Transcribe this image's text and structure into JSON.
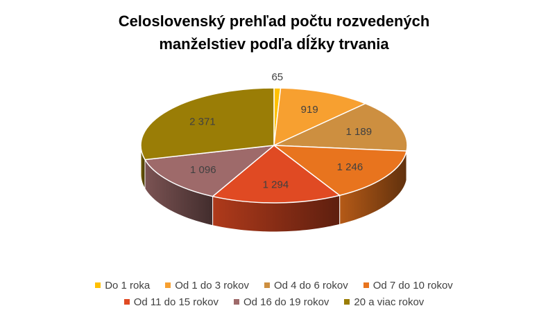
{
  "chart_data": {
    "type": "pie",
    "title_line1": "Celoslovenský prehľad počtu rozvedených",
    "title_line2": "manželstiev podľa dĺžky trvania",
    "slices": [
      {
        "name": "Do 1 roka",
        "value": 65,
        "label": "65",
        "color": "#FFC000"
      },
      {
        "name": "Od 1 do 3 rokov",
        "value": 919,
        "label": "919",
        "color": "#F7A030"
      },
      {
        "name": "Od 4 do 6 rokov",
        "value": 1189,
        "label": "1 189",
        "color": "#CD8F40"
      },
      {
        "name": "Od 7 do 10 rokov",
        "value": 1246,
        "label": "1 246",
        "color": "#E8741E"
      },
      {
        "name": "Od 11 do 15 rokov",
        "value": 1294,
        "label": "1 294",
        "color": "#E04A23"
      },
      {
        "name": "Od 16 do 19 rokov",
        "value": 1096,
        "label": "1 096",
        "color": "#9E6A6A"
      },
      {
        "name": "20 a viac rokov",
        "value": 2371,
        "label": "2 371",
        "color": "#9A7D06"
      }
    ],
    "legend_position": "bottom"
  }
}
